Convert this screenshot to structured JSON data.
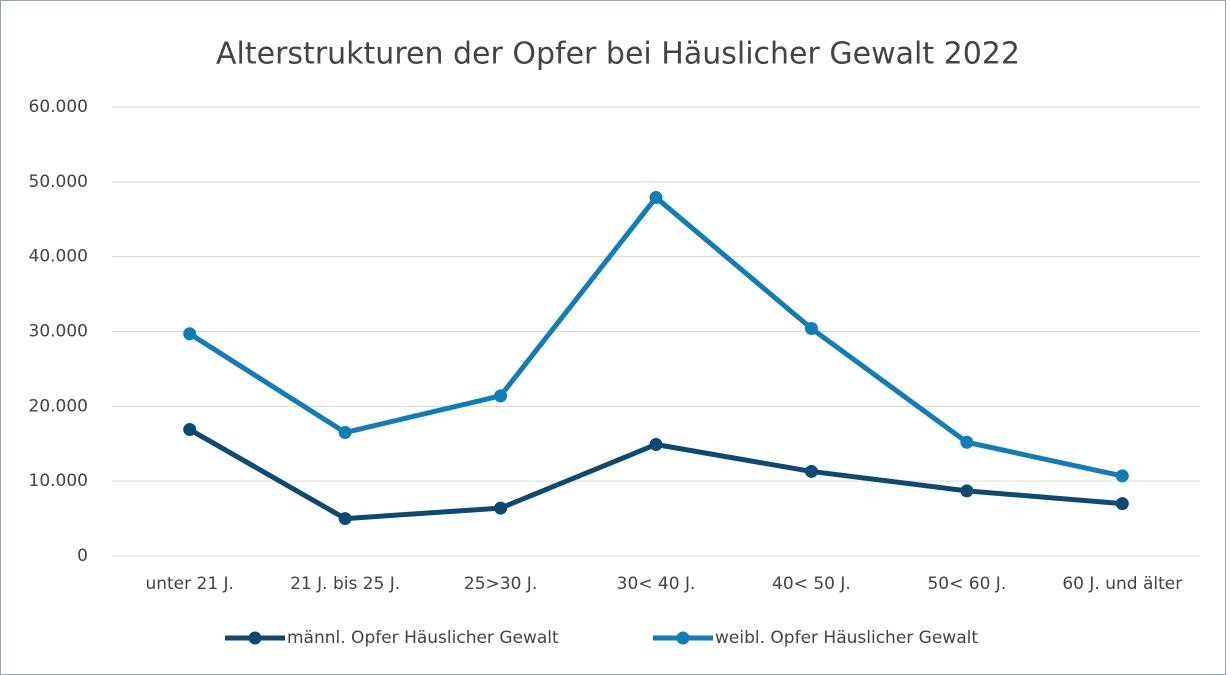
{
  "chart_data": {
    "type": "line",
    "title": "Alterstrukturen der Opfer bei Häuslicher Gewalt 2022",
    "categories": [
      "unter 21 J.",
      "21 J. bis 25 J.",
      "25>30 J.",
      "30< 40 J.",
      "40< 50 J.",
      "50< 60 J.",
      "60 J. und älter"
    ],
    "series": [
      {
        "name": "männl. Opfer Häuslicher Gewalt",
        "color": "#0b4a72",
        "values": [
          16900,
          5000,
          6400,
          14900,
          11300,
          8700,
          7000
        ]
      },
      {
        "name": "weibl. Opfer Häuslicher Gewalt",
        "color": "#0f7eb8",
        "values": [
          29700,
          16500,
          21400,
          47900,
          30400,
          15200,
          10700
        ]
      }
    ],
    "ylim": [
      0,
      60000
    ],
    "yticks": [
      0,
      {
        "value": 10000,
        "label": "10.000"
      },
      {
        "value": 20000,
        "label": "20.000"
      },
      {
        "value": 30000,
        "label": "30.000"
      },
      {
        "value": 40000,
        "label": "40.000"
      },
      {
        "value": 50000,
        "label": "50.000"
      },
      {
        "value": 60000,
        "label": "60.000"
      }
    ],
    "grid": true,
    "legend": "bottom"
  }
}
